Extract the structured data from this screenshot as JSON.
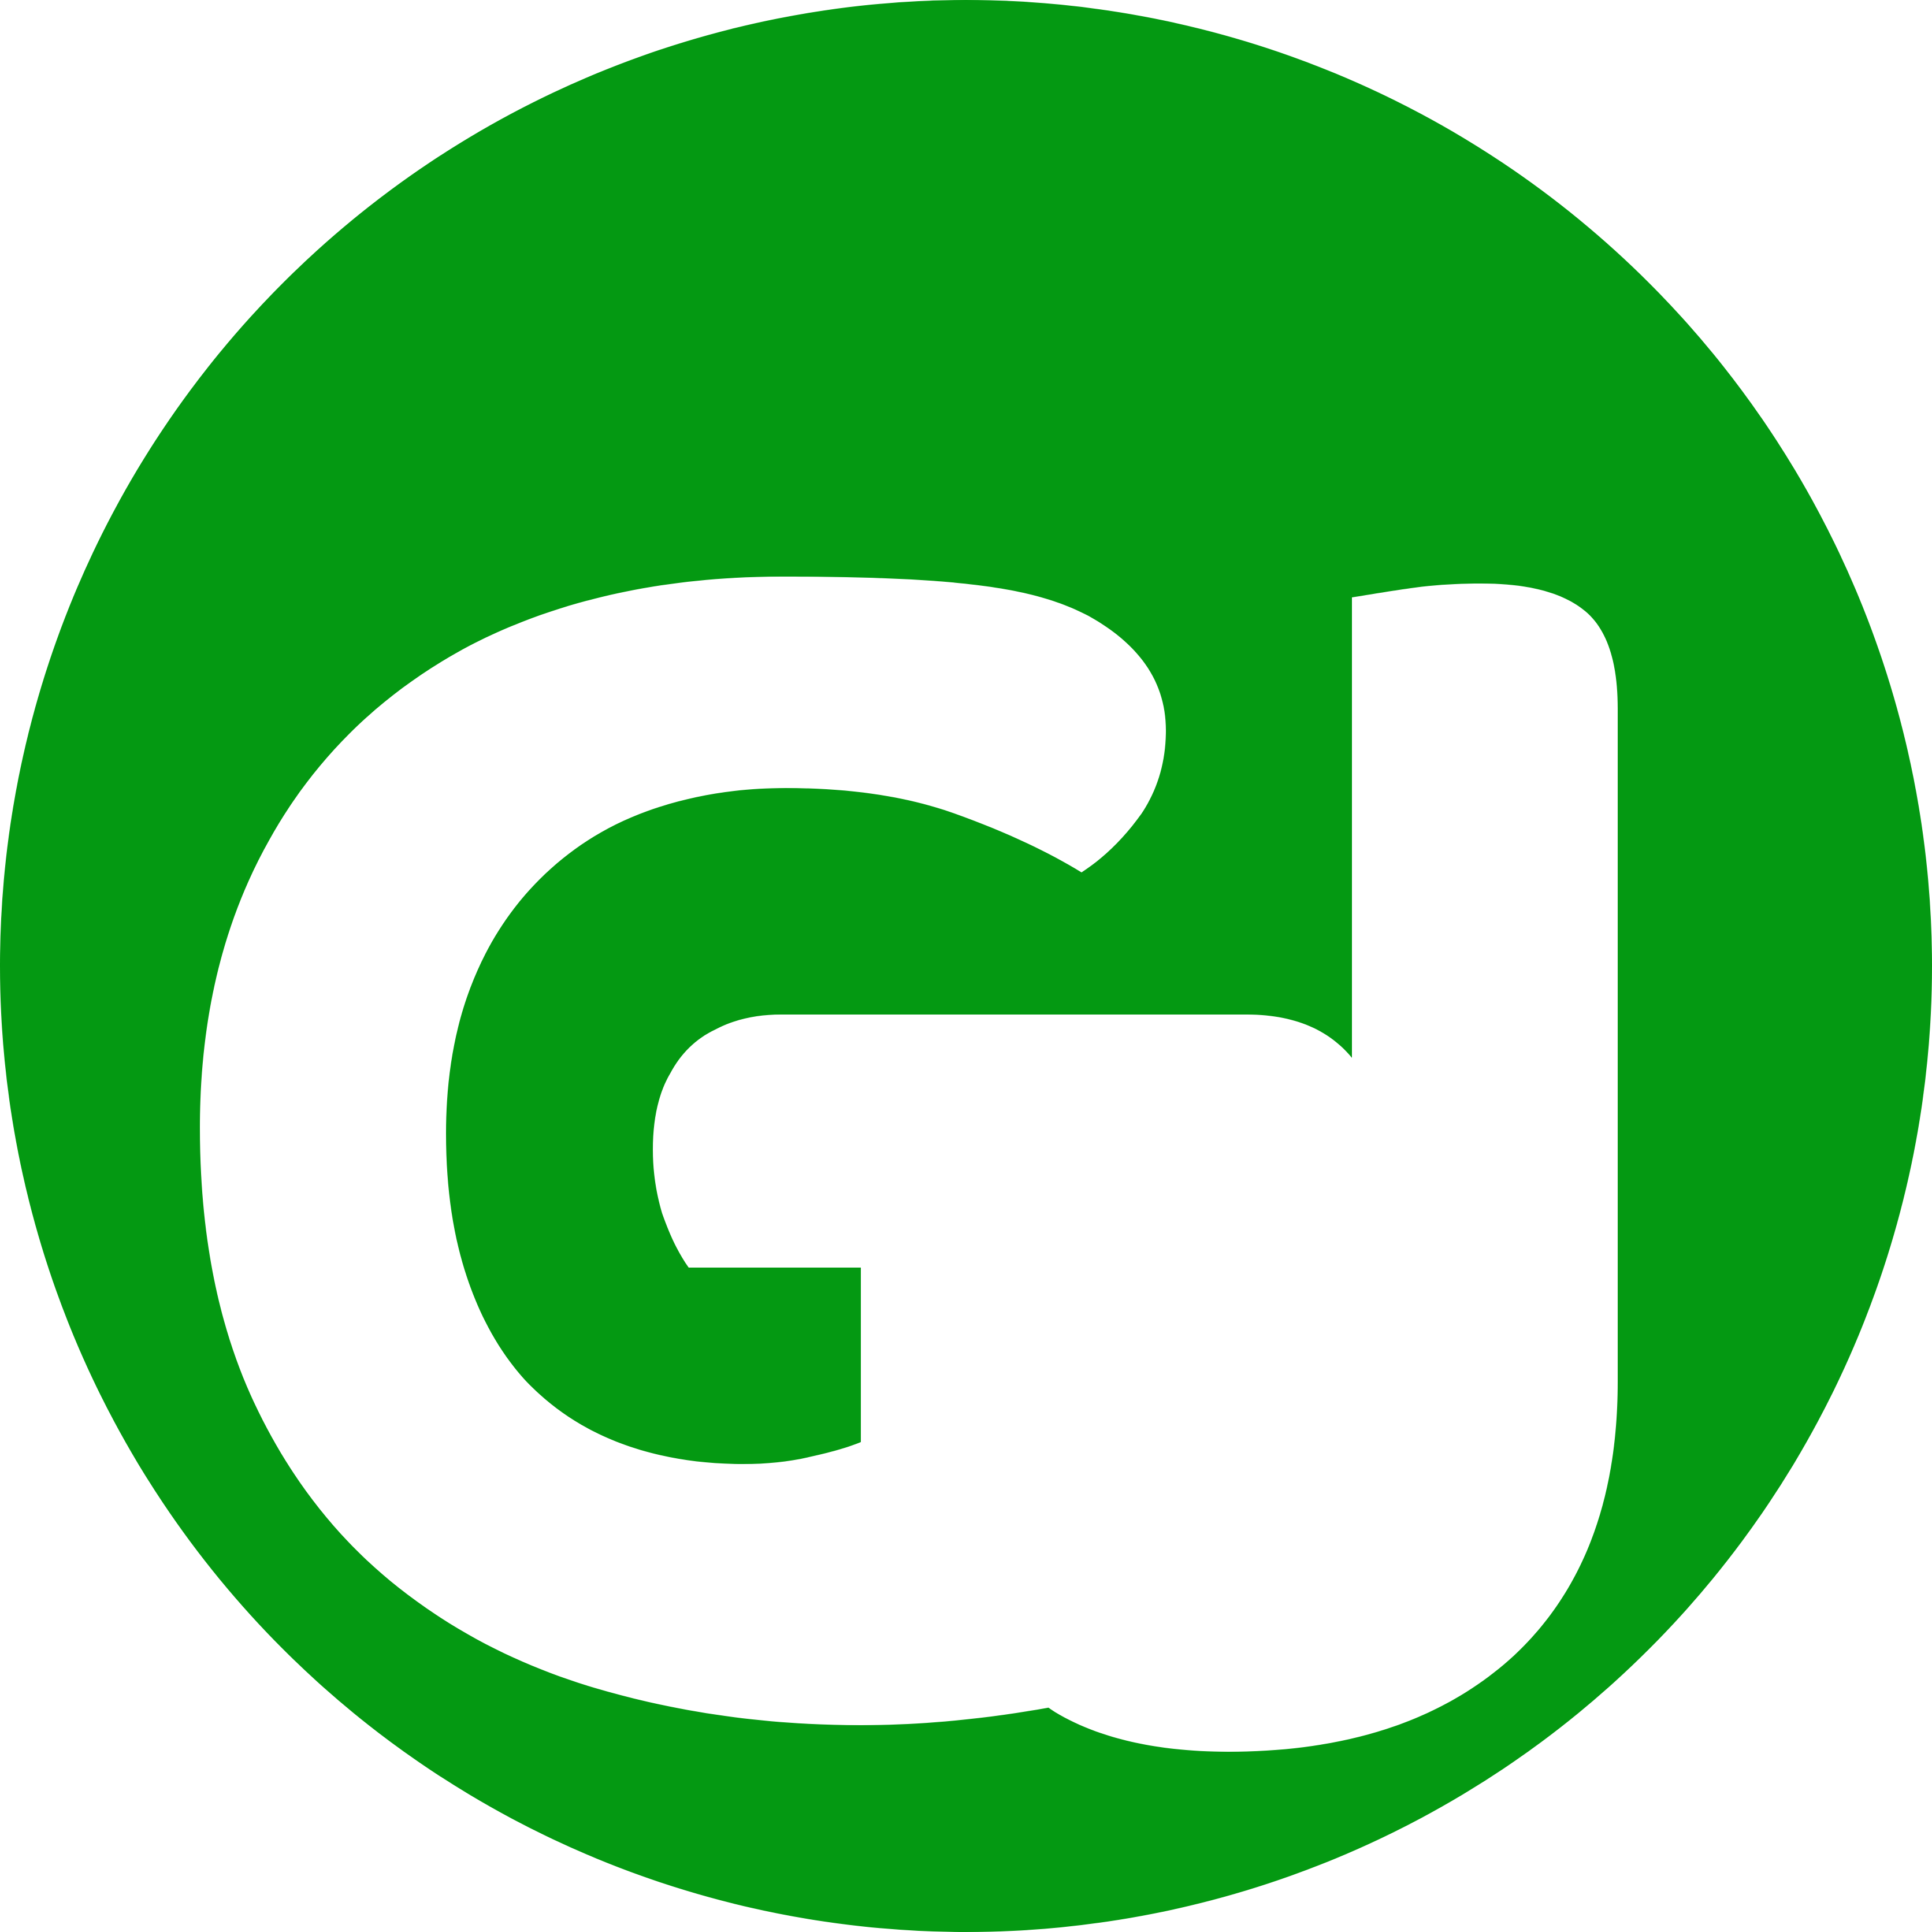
{
  "avatar": {
    "initials": "GJ",
    "background_color": "#049912",
    "text_color": "#ffffff"
  }
}
